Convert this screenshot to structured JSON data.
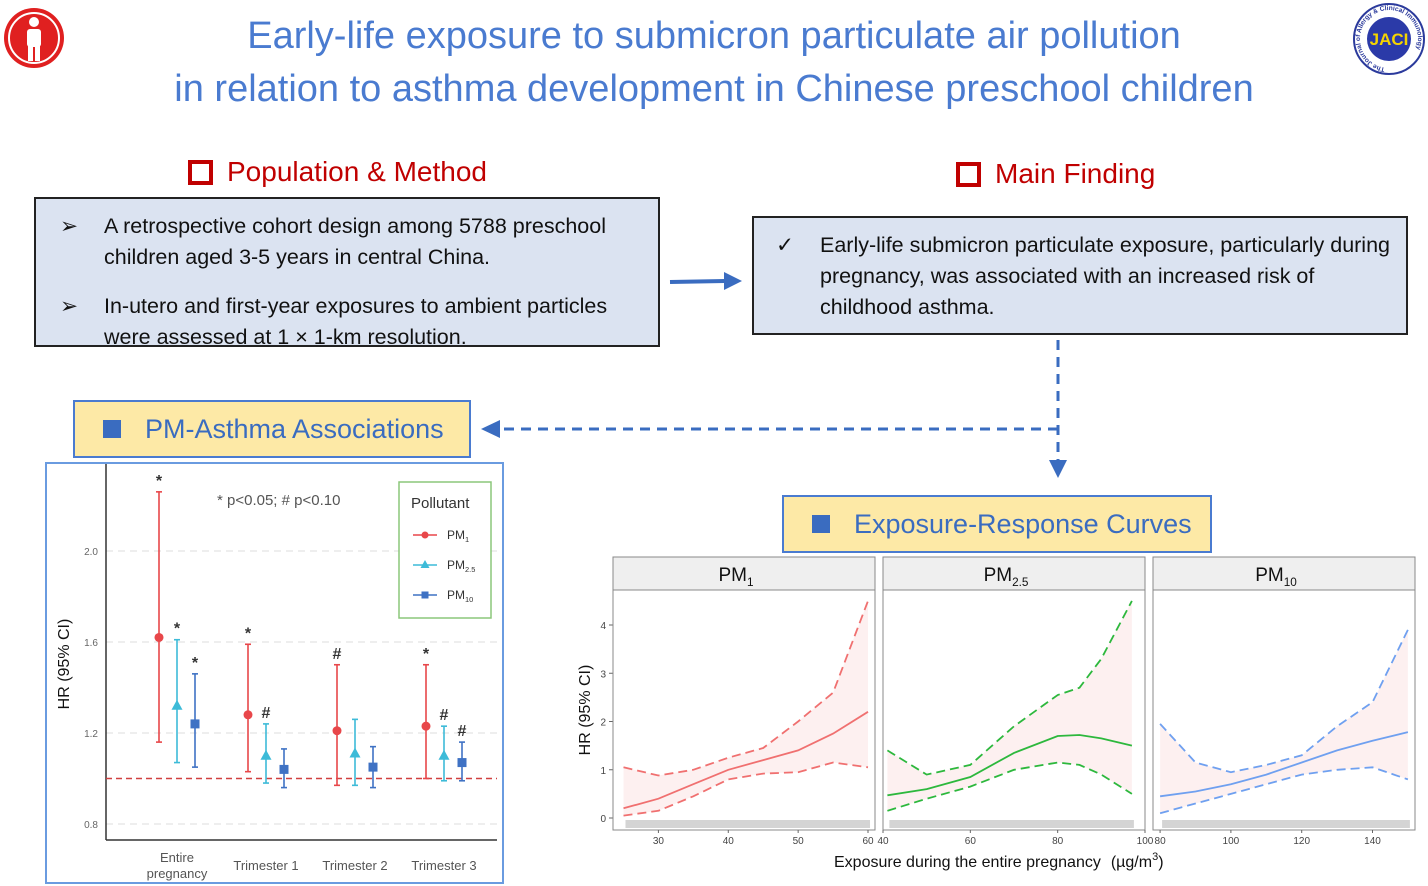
{
  "header": {
    "title_line1": "Early-life exposure to submicron particulate air pollution",
    "title_line2": "in relation to asthma development in Chinese preschool children",
    "left_logo_icon": "person-icon",
    "right_logo_text": "JACI",
    "right_logo_ring": "The Journal of Allergy & Clinical Immunology"
  },
  "population": {
    "heading": "Population & Method",
    "bullets": [
      {
        "icon": "arrow-bullet-icon",
        "glyph": "➢",
        "text": "A retrospective cohort design among 5788 preschool children aged 3-5 years in central China."
      },
      {
        "icon": "arrow-bullet-icon",
        "glyph": "➢",
        "text": "In-utero and first-year exposures to ambient particles were assessed at 1 × 1-km resolution."
      }
    ]
  },
  "finding": {
    "heading": "Main Finding",
    "bullets": [
      {
        "icon": "check-icon",
        "glyph": "✓",
        "text": "Early-life submicron particulate exposure, particularly during pregnancy, was associated with an increased risk of childhood asthma."
      }
    ]
  },
  "associations_label": "PM-Asthma Associations",
  "curves_label": "Exposure-Response Curves",
  "colors": {
    "accent": "#4a7bd0",
    "heading_red": "#c00000",
    "box_fill": "#dbe3f1",
    "label_fill": "#fde9a6",
    "pm1": "#e8474a",
    "pm25": "#3dbbd8",
    "pm10": "#3f72c4",
    "curve_pm1": "#f07070",
    "curve_pm25": "#2db83d",
    "curve_pm10": "#6fa0f0"
  },
  "chart_data": [
    {
      "type": "scatter",
      "ylabel": "HR (95% CI)",
      "annotation": "* p<0.05;  # p<0.10",
      "legend_title": "Pollutant",
      "legend_placement": "top-right",
      "categories": [
        "Entire pregnancy",
        "Trimester 1",
        "Trimester 2",
        "Trimester 3"
      ],
      "ylim": [
        0.72,
        2.4
      ],
      "yticks": [
        "0.8",
        "1.2",
        "1.6",
        "2.0"
      ],
      "reference_line": 1.0,
      "grid": true,
      "series": [
        {
          "name": "PM1",
          "base": "PM",
          "sub": "1",
          "marker": "circle",
          "hr": [
            1.62,
            1.28,
            1.21,
            1.23
          ],
          "lower": [
            1.16,
            1.03,
            0.97,
            1.0
          ],
          "upper": [
            2.26,
            1.59,
            1.5,
            1.5
          ],
          "sig": [
            "*",
            "*",
            "#",
            "*"
          ]
        },
        {
          "name": "PM2.5",
          "base": "PM",
          "sub": "2.5",
          "marker": "triangle",
          "hr": [
            1.32,
            1.1,
            1.11,
            1.1
          ],
          "lower": [
            1.07,
            0.98,
            0.97,
            0.99
          ],
          "upper": [
            1.61,
            1.24,
            1.26,
            1.23
          ],
          "sig": [
            "*",
            "#",
            "",
            "#"
          ]
        },
        {
          "name": "PM10",
          "base": "PM",
          "sub": "10",
          "marker": "square",
          "hr": [
            1.24,
            1.04,
            1.05,
            1.07
          ],
          "lower": [
            1.05,
            0.96,
            0.96,
            0.99
          ],
          "upper": [
            1.46,
            1.13,
            1.14,
            1.16
          ],
          "sig": [
            "*",
            "",
            "",
            "#"
          ]
        }
      ]
    },
    {
      "type": "line",
      "ylabel": "HR (95% CI)",
      "xlabel": "Exposure during the entire pregnancy",
      "xunit": "(µg/m",
      "xunit_sup": "3",
      "xunit_close": ")",
      "ylim": [
        -0.1,
        4.6
      ],
      "yticks": [
        0,
        1,
        2,
        3,
        4
      ],
      "panels": [
        {
          "name": "PM1",
          "base": "PM",
          "sub": "1",
          "xlim": [
            23.5,
            61
          ],
          "xticks": [
            30,
            40,
            50,
            60
          ],
          "x": [
            25,
            30,
            35,
            40,
            45,
            50,
            55,
            60
          ],
          "fit": [
            0.2,
            0.4,
            0.7,
            1.0,
            1.2,
            1.4,
            1.75,
            2.2
          ],
          "upper": [
            1.05,
            0.88,
            1.0,
            1.25,
            1.45,
            2.0,
            2.6,
            4.5
          ],
          "lower": [
            0.05,
            0.15,
            0.45,
            0.8,
            0.92,
            0.95,
            1.15,
            1.05
          ]
        },
        {
          "name": "PM2.5",
          "base": "PM",
          "sub": "2.5",
          "xlim": [
            40,
            100
          ],
          "xticks": [
            40,
            60,
            80,
            100
          ],
          "x": [
            41,
            50,
            60,
            70,
            80,
            85,
            90,
            97
          ],
          "fit": [
            0.47,
            0.6,
            0.85,
            1.35,
            1.7,
            1.72,
            1.65,
            1.5
          ],
          "upper": [
            1.4,
            0.9,
            1.1,
            1.9,
            2.55,
            2.7,
            3.3,
            4.5
          ],
          "lower": [
            0.15,
            0.4,
            0.65,
            1.0,
            1.15,
            1.1,
            0.9,
            0.5
          ]
        },
        {
          "name": "PM10",
          "base": "PM",
          "sub": "10",
          "xlim": [
            78,
            152
          ],
          "xticks": [
            80,
            100,
            120,
            140
          ],
          "x": [
            80,
            90,
            100,
            110,
            120,
            130,
            140,
            150
          ],
          "fit": [
            0.45,
            0.55,
            0.7,
            0.9,
            1.15,
            1.4,
            1.6,
            1.78
          ],
          "upper": [
            1.95,
            1.15,
            0.95,
            1.1,
            1.3,
            1.9,
            2.4,
            3.9
          ],
          "lower": [
            0.1,
            0.3,
            0.5,
            0.7,
            0.9,
            1.0,
            1.05,
            0.8
          ]
        }
      ]
    }
  ]
}
